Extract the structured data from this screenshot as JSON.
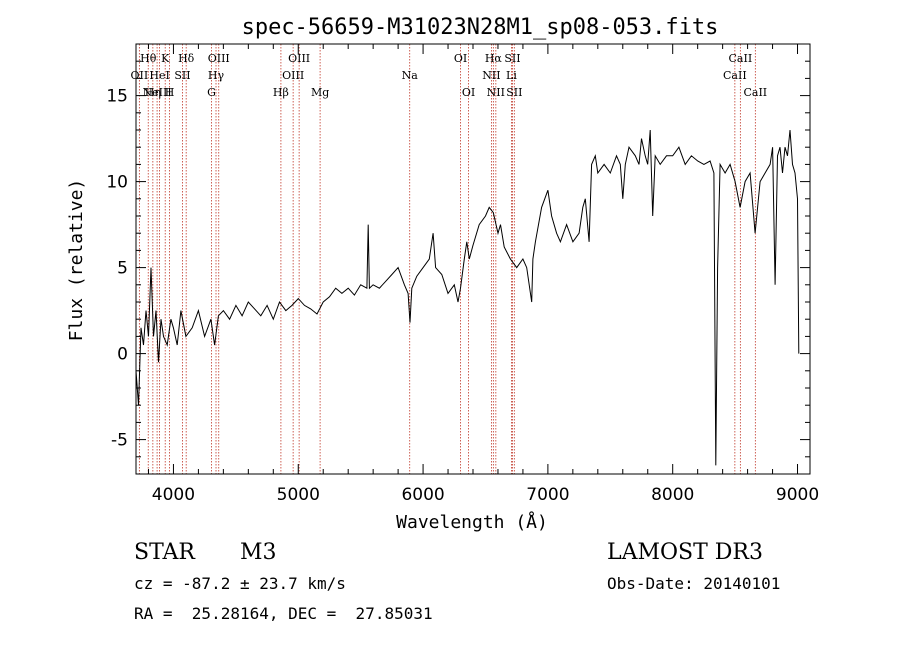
{
  "chart_data": {
    "type": "line",
    "title": "spec-56659-M31023N28M1_sp08-053.fits",
    "xlabel": "Wavelength (Å)",
    "ylabel": "Flux (relative)",
    "xlim": [
      3700,
      9100
    ],
    "ylim": [
      -7,
      18
    ],
    "x_ticks": [
      4000,
      5000,
      6000,
      7000,
      8000,
      9000
    ],
    "y_ticks": [
      -5,
      0,
      5,
      10,
      15
    ],
    "series": [
      {
        "name": "flux",
        "points": [
          [
            3700,
            -1.0
          ],
          [
            3720,
            -3.0
          ],
          [
            3740,
            1.5
          ],
          [
            3760,
            0.5
          ],
          [
            3780,
            2.5
          ],
          [
            3800,
            1.0
          ],
          [
            3820,
            5.0
          ],
          [
            3840,
            1.0
          ],
          [
            3860,
            2.5
          ],
          [
            3880,
            -0.5
          ],
          [
            3900,
            2.0
          ],
          [
            3920,
            1.0
          ],
          [
            3950,
            0.5
          ],
          [
            3980,
            2.0
          ],
          [
            4000,
            1.5
          ],
          [
            4030,
            0.5
          ],
          [
            4060,
            2.5
          ],
          [
            4100,
            1.0
          ],
          [
            4150,
            1.5
          ],
          [
            4200,
            2.5
          ],
          [
            4250,
            1.0
          ],
          [
            4300,
            2.0
          ],
          [
            4330,
            0.5
          ],
          [
            4360,
            2.2
          ],
          [
            4400,
            2.5
          ],
          [
            4450,
            2.0
          ],
          [
            4500,
            2.8
          ],
          [
            4550,
            2.2
          ],
          [
            4600,
            3.0
          ],
          [
            4650,
            2.6
          ],
          [
            4700,
            2.2
          ],
          [
            4750,
            2.8
          ],
          [
            4800,
            2.0
          ],
          [
            4850,
            3.0
          ],
          [
            4900,
            2.5
          ],
          [
            4950,
            2.8
          ],
          [
            5000,
            3.2
          ],
          [
            5050,
            2.8
          ],
          [
            5100,
            2.6
          ],
          [
            5150,
            2.3
          ],
          [
            5200,
            3.0
          ],
          [
            5250,
            3.3
          ],
          [
            5300,
            3.8
          ],
          [
            5350,
            3.5
          ],
          [
            5400,
            3.8
          ],
          [
            5450,
            3.4
          ],
          [
            5500,
            4.0
          ],
          [
            5550,
            3.8
          ],
          [
            5560,
            7.5
          ],
          [
            5570,
            3.8
          ],
          [
            5600,
            4.0
          ],
          [
            5650,
            3.8
          ],
          [
            5700,
            4.2
          ],
          [
            5750,
            4.6
          ],
          [
            5800,
            5.0
          ],
          [
            5850,
            4.0
          ],
          [
            5880,
            3.5
          ],
          [
            5895,
            1.8
          ],
          [
            5910,
            3.8
          ],
          [
            5950,
            4.5
          ],
          [
            6000,
            5.0
          ],
          [
            6050,
            5.5
          ],
          [
            6080,
            7.0
          ],
          [
            6100,
            5.0
          ],
          [
            6150,
            4.6
          ],
          [
            6200,
            3.5
          ],
          [
            6250,
            4.0
          ],
          [
            6280,
            3.0
          ],
          [
            6300,
            3.8
          ],
          [
            6330,
            5.5
          ],
          [
            6350,
            6.5
          ],
          [
            6370,
            5.5
          ],
          [
            6400,
            6.3
          ],
          [
            6450,
            7.5
          ],
          [
            6500,
            8.0
          ],
          [
            6530,
            8.5
          ],
          [
            6563,
            8.2
          ],
          [
            6600,
            7.0
          ],
          [
            6620,
            7.5
          ],
          [
            6650,
            6.2
          ],
          [
            6700,
            5.5
          ],
          [
            6750,
            5.0
          ],
          [
            6800,
            5.5
          ],
          [
            6830,
            5.0
          ],
          [
            6870,
            3.0
          ],
          [
            6880,
            5.5
          ],
          [
            6900,
            6.5
          ],
          [
            6950,
            8.5
          ],
          [
            7000,
            9.5
          ],
          [
            7030,
            8.0
          ],
          [
            7070,
            7.0
          ],
          [
            7100,
            6.5
          ],
          [
            7150,
            7.5
          ],
          [
            7200,
            6.5
          ],
          [
            7250,
            7.0
          ],
          [
            7280,
            8.5
          ],
          [
            7300,
            9.0
          ],
          [
            7330,
            6.5
          ],
          [
            7350,
            11.0
          ],
          [
            7380,
            11.5
          ],
          [
            7400,
            10.5
          ],
          [
            7450,
            11.0
          ],
          [
            7500,
            10.5
          ],
          [
            7550,
            11.5
          ],
          [
            7580,
            11.0
          ],
          [
            7600,
            9.0
          ],
          [
            7620,
            11.0
          ],
          [
            7650,
            12.0
          ],
          [
            7700,
            11.5
          ],
          [
            7730,
            11.0
          ],
          [
            7750,
            12.5
          ],
          [
            7780,
            11.5
          ],
          [
            7800,
            11.0
          ],
          [
            7820,
            13.0
          ],
          [
            7840,
            8.0
          ],
          [
            7860,
            11.5
          ],
          [
            7900,
            11.0
          ],
          [
            7950,
            11.5
          ],
          [
            8000,
            11.5
          ],
          [
            8050,
            12.0
          ],
          [
            8100,
            11.0
          ],
          [
            8150,
            11.5
          ],
          [
            8200,
            11.2
          ],
          [
            8250,
            11.0
          ],
          [
            8300,
            11.2
          ],
          [
            8330,
            10.5
          ],
          [
            8345,
            -6.5
          ],
          [
            8360,
            5.0
          ],
          [
            8380,
            11.0
          ],
          [
            8420,
            10.5
          ],
          [
            8460,
            11.0
          ],
          [
            8500,
            10.0
          ],
          [
            8540,
            8.5
          ],
          [
            8580,
            10.0
          ],
          [
            8620,
            10.5
          ],
          [
            8660,
            7.0
          ],
          [
            8700,
            10.0
          ],
          [
            8740,
            10.5
          ],
          [
            8780,
            11.0
          ],
          [
            8800,
            12.0
          ],
          [
            8820,
            4.0
          ],
          [
            8840,
            11.5
          ],
          [
            8860,
            12.0
          ],
          [
            8880,
            10.5
          ],
          [
            8900,
            12.0
          ],
          [
            8920,
            11.5
          ],
          [
            8940,
            13.0
          ],
          [
            8960,
            11.0
          ],
          [
            8980,
            10.5
          ],
          [
            9000,
            9.0
          ],
          [
            9010,
            0.0
          ]
        ]
      }
    ],
    "lines": [
      {
        "wl": 3727,
        "label": "OII",
        "row": 1
      },
      {
        "wl": 3798,
        "label": "Hθ",
        "row": 0
      },
      {
        "wl": 3835,
        "label": "Hη",
        "row": 2
      },
      {
        "wl": 3869,
        "label": "NeIII",
        "row": 2
      },
      {
        "wl": 3889,
        "label": "HeI",
        "row": 1
      },
      {
        "wl": 3934,
        "label": "K",
        "row": 0
      },
      {
        "wl": 3969,
        "label": "H",
        "row": 2
      },
      {
        "wl": 4072,
        "label": "SII",
        "row": 1
      },
      {
        "wl": 4102,
        "label": "Hδ",
        "row": 0
      },
      {
        "wl": 4305,
        "label": "G",
        "row": 2
      },
      {
        "wl": 4341,
        "label": "Hγ",
        "row": 1
      },
      {
        "wl": 4363,
        "label": "OIII",
        "row": 0
      },
      {
        "wl": 4861,
        "label": "Hβ",
        "row": 2
      },
      {
        "wl": 4959,
        "label": "OIII",
        "row": 1
      },
      {
        "wl": 5007,
        "label": "OIII",
        "row": 0
      },
      {
        "wl": 5175,
        "label": "Mg",
        "row": 2
      },
      {
        "wl": 5893,
        "label": "Na",
        "row": 1
      },
      {
        "wl": 6300,
        "label": "OI",
        "row": 0
      },
      {
        "wl": 6364,
        "label": "OI",
        "row": 2
      },
      {
        "wl": 6548,
        "label": "NII",
        "row": 1
      },
      {
        "wl": 6563,
        "label": "Hα",
        "row": 0
      },
      {
        "wl": 6583,
        "label": "NII",
        "row": 2
      },
      {
        "wl": 6708,
        "label": "Li",
        "row": 1
      },
      {
        "wl": 6716,
        "label": "SII",
        "row": 0
      },
      {
        "wl": 6731,
        "label": "SII",
        "row": 2
      },
      {
        "wl": 8498,
        "label": "CaII",
        "row": 1
      },
      {
        "wl": 8542,
        "label": "CaII",
        "row": 0
      },
      {
        "wl": 8662,
        "label": "CaII",
        "row": 2
      }
    ],
    "colors": {
      "curve": "#000000",
      "line_marker": "#c0392b",
      "frame": "#000000"
    }
  },
  "info": {
    "class": "STAR",
    "subclass": "M3",
    "survey": "LAMOST DR3",
    "redshift": "cz = -87.2 ± 23.7 km/s",
    "obs_date": "Obs-Date: 20140101",
    "coords": "RA =  25.28164, DEC =  27.85031"
  }
}
